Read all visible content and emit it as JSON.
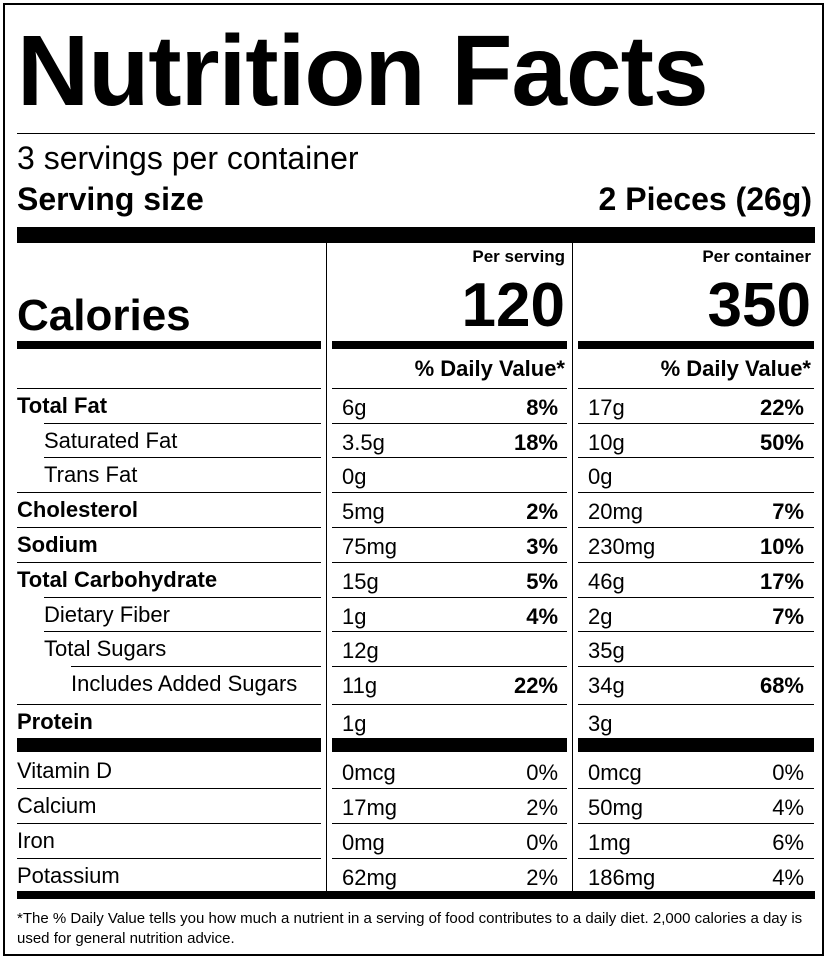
{
  "title": "Nutrition Facts",
  "servings_per_container": "3 servings per container",
  "serving_size": {
    "label": "Serving size",
    "value": "2 Pieces (26g)"
  },
  "columns": {
    "per_serving": "Per serving",
    "per_container": "Per container"
  },
  "calories": {
    "label": "Calories",
    "per_serving": "120",
    "per_container": "350"
  },
  "daily_value_header": "% Daily Value*",
  "nutrients": [
    {
      "name": "Total Fat",
      "bold": true,
      "indent": 0,
      "s_amt": "6g",
      "s_dv": "8%",
      "c_amt": "17g",
      "c_dv": "22%"
    },
    {
      "name": "Saturated Fat",
      "bold": false,
      "indent": 1,
      "s_amt": "3.5g",
      "s_dv": "18%",
      "c_amt": "10g",
      "c_dv": "50%"
    },
    {
      "name": "Trans Fat",
      "bold": false,
      "indent": 1,
      "s_amt": "0g",
      "s_dv": "",
      "c_amt": "0g",
      "c_dv": ""
    },
    {
      "name": "Cholesterol",
      "bold": true,
      "indent": 0,
      "s_amt": "5mg",
      "s_dv": "2%",
      "c_amt": "20mg",
      "c_dv": "7%"
    },
    {
      "name": "Sodium",
      "bold": true,
      "indent": 0,
      "s_amt": "75mg",
      "s_dv": "3%",
      "c_amt": "230mg",
      "c_dv": "10%"
    },
    {
      "name": "Total Carbohydrate",
      "bold": true,
      "indent": 0,
      "s_amt": "15g",
      "s_dv": "5%",
      "c_amt": "46g",
      "c_dv": "17%"
    },
    {
      "name": "Dietary Fiber",
      "bold": false,
      "indent": 1,
      "s_amt": "1g",
      "s_dv": "4%",
      "c_amt": "2g",
      "c_dv": "7%"
    },
    {
      "name": "Total Sugars",
      "bold": false,
      "indent": 1,
      "s_amt": "12g",
      "s_dv": "",
      "c_amt": "35g",
      "c_dv": ""
    },
    {
      "name": "Includes Added Sugars",
      "bold": false,
      "indent": 2,
      "s_amt": "11g",
      "s_dv": "22%",
      "c_amt": "34g",
      "c_dv": "68%"
    },
    {
      "name": "Protein",
      "bold": true,
      "indent": 0,
      "s_amt": "1g",
      "s_dv": "",
      "c_amt": "3g",
      "c_dv": ""
    }
  ],
  "vitamins": [
    {
      "name": "Vitamin D",
      "s_amt": "0mcg",
      "s_dv": "0%",
      "c_amt": "0mcg",
      "c_dv": "0%"
    },
    {
      "name": "Calcium",
      "s_amt": "17mg",
      "s_dv": "2%",
      "c_amt": "50mg",
      "c_dv": "4%"
    },
    {
      "name": "Iron",
      "s_amt": "0mg",
      "s_dv": "0%",
      "c_amt": "1mg",
      "c_dv": "6%"
    },
    {
      "name": "Potassium",
      "s_amt": "62mg",
      "s_dv": "2%",
      "c_amt": "186mg",
      "c_dv": "4%"
    }
  ],
  "footnote": "*The % Daily Value tells you how much a nutrient in a serving of food contributes to a daily diet. 2,000 calories a day is used for general nutrition advice."
}
